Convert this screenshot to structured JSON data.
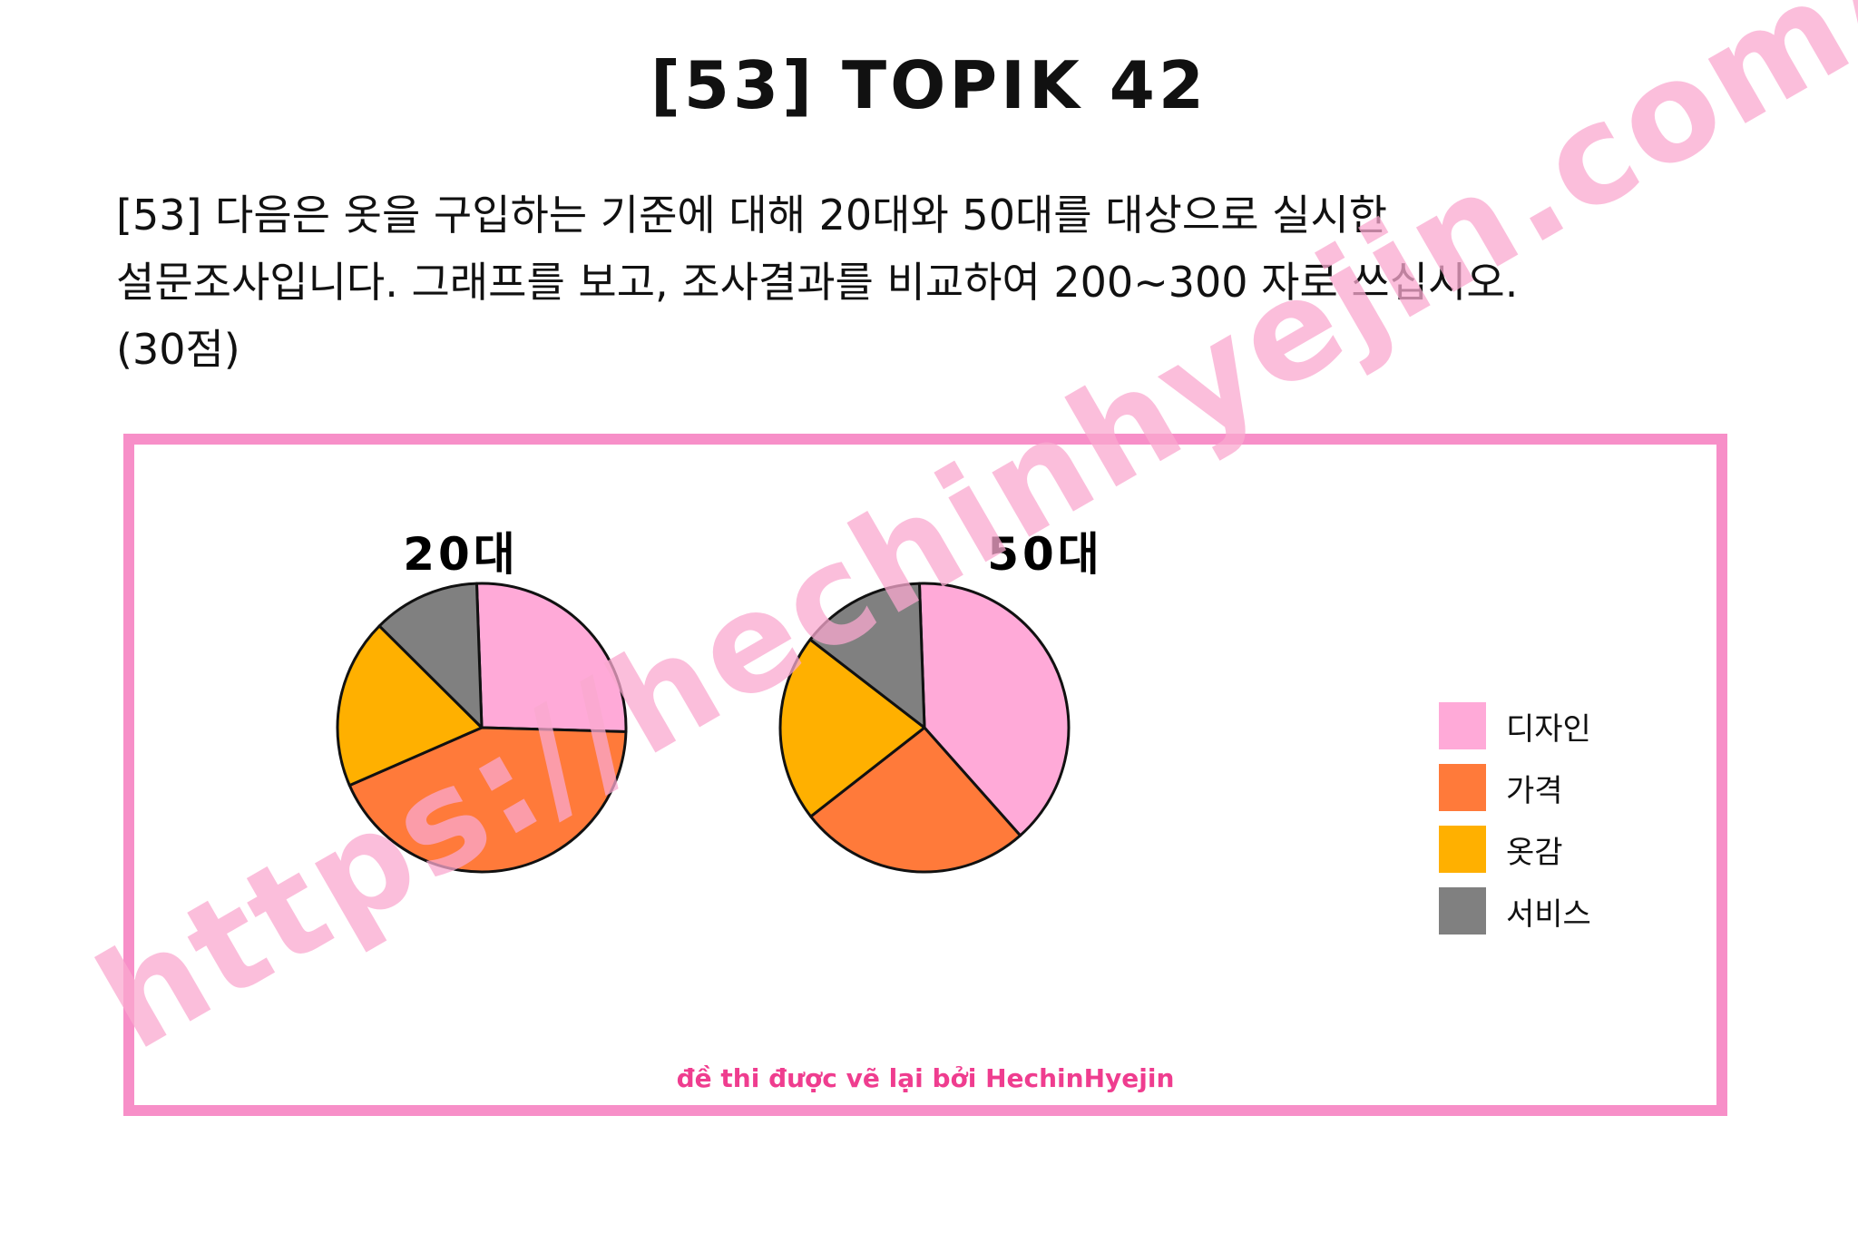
{
  "page": {
    "title": "[53] TOPIK 42",
    "question_lines": [
      "[53] 다음은 옷을 구입하는 기준에 대해 20대와 50대를 대상으로 실시한",
      "설문조사입니다. 그래프를 보고, 조사결과를 비교하여 200~300 자로 쓰십시오.",
      "(30점)"
    ],
    "credit": "đề thi được vẽ lại bởi HechinHyejin",
    "watermark": "https://hechinhyejin.com/"
  },
  "colors": {
    "frame": "#f78fc8",
    "credit": "#ef3d8f",
    "watermark": "#f9a8cf"
  },
  "chart_data": [
    {
      "type": "pie",
      "title": "20대",
      "categories": [
        "디자인",
        "가격",
        "옷감",
        "서비스"
      ],
      "values": [
        26,
        43,
        19,
        12
      ],
      "colors": [
        "#ffaad8",
        "#ff7a3a",
        "#ffb000",
        "#808080"
      ]
    },
    {
      "type": "pie",
      "title": "50대",
      "categories": [
        "디자인",
        "가격",
        "옷감",
        "서비스"
      ],
      "values": [
        39,
        26,
        21,
        14
      ],
      "colors": [
        "#ffaad8",
        "#ff7a3a",
        "#ffb000",
        "#808080"
      ]
    }
  ],
  "legend": {
    "position": "right",
    "items": [
      {
        "label": "디자인",
        "color": "#ffaad8"
      },
      {
        "label": "가격",
        "color": "#ff7a3a"
      },
      {
        "label": "옷감",
        "color": "#ffb000"
      },
      {
        "label": "서비스",
        "color": "#808080"
      }
    ]
  }
}
